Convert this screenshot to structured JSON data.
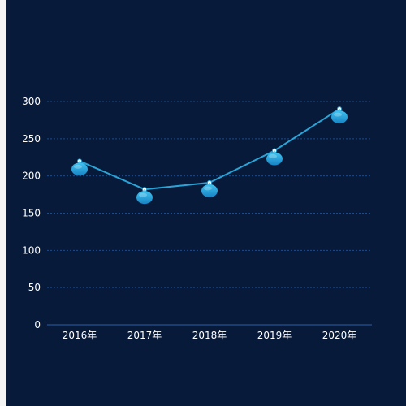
{
  "colors": {
    "background": "#071a3a",
    "gridline": "#1d4a8a",
    "axis": "#2a5fb0",
    "line": "#2aa3d6",
    "marker_top": "#40c4f0",
    "marker_bottom": "#1783c4",
    "label": "#ffffff"
  },
  "chart_data": {
    "type": "line",
    "title": "",
    "xlabel": "",
    "ylabel": "",
    "categories": [
      "2016年",
      "2017年",
      "2018年",
      "2019年",
      "2020年"
    ],
    "series": [
      {
        "values": [
          220,
          182,
          191,
          234,
          290
        ]
      }
    ],
    "ylim": [
      0,
      300
    ],
    "yticks": [
      0,
      50,
      100,
      150,
      200,
      250,
      300
    ],
    "grid": true,
    "legend": "none",
    "marker": "balloon-pin"
  }
}
